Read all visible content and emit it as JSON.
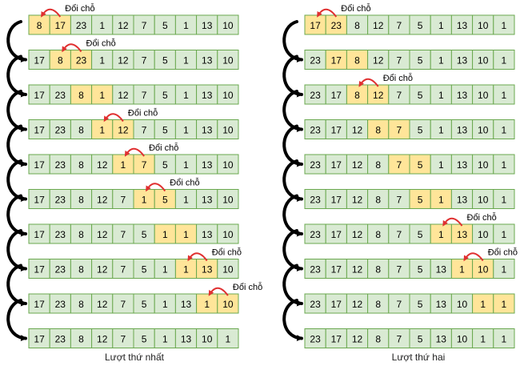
{
  "colors": {
    "cell_fill": "#d9ead3",
    "cell_highlight": "#ffe599",
    "cell_border": "#6aa84f",
    "swap_arrow": "#e03030",
    "flow_arrow": "#000000"
  },
  "swap_label": "Đổi chỗ",
  "passes": [
    {
      "caption": "Lượt thứ nhất",
      "rows": [
        {
          "values": [
            "8",
            "17",
            "23",
            "1",
            "12",
            "7",
            "5",
            "1",
            "13",
            "10"
          ],
          "highlight": [
            0,
            1
          ],
          "swap": true
        },
        {
          "values": [
            "17",
            "8",
            "23",
            "1",
            "12",
            "7",
            "5",
            "1",
            "13",
            "10"
          ],
          "highlight": [
            1,
            2
          ],
          "swap": true
        },
        {
          "values": [
            "17",
            "23",
            "8",
            "1",
            "12",
            "7",
            "5",
            "1",
            "13",
            "10"
          ],
          "highlight": [
            2,
            3
          ],
          "swap": false
        },
        {
          "values": [
            "17",
            "23",
            "8",
            "1",
            "12",
            "7",
            "5",
            "1",
            "13",
            "10"
          ],
          "highlight": [
            3,
            4
          ],
          "swap": true
        },
        {
          "values": [
            "17",
            "23",
            "8",
            "12",
            "1",
            "7",
            "5",
            "1",
            "13",
            "10"
          ],
          "highlight": [
            4,
            5
          ],
          "swap": true
        },
        {
          "values": [
            "17",
            "23",
            "8",
            "12",
            "7",
            "1",
            "5",
            "1",
            "13",
            "10"
          ],
          "highlight": [
            5,
            6
          ],
          "swap": true
        },
        {
          "values": [
            "17",
            "23",
            "8",
            "12",
            "7",
            "5",
            "1",
            "1",
            "13",
            "10"
          ],
          "highlight": [
            6,
            7
          ],
          "swap": false
        },
        {
          "values": [
            "17",
            "23",
            "8",
            "12",
            "7",
            "5",
            "1",
            "1",
            "13",
            "10"
          ],
          "highlight": [
            7,
            8
          ],
          "swap": true
        },
        {
          "values": [
            "17",
            "23",
            "8",
            "12",
            "7",
            "5",
            "1",
            "13",
            "1",
            "10"
          ],
          "highlight": [
            8,
            9
          ],
          "swap": true
        },
        {
          "values": [
            "17",
            "23",
            "8",
            "12",
            "7",
            "5",
            "1",
            "13",
            "10",
            "1"
          ],
          "highlight": [],
          "swap": false
        }
      ]
    },
    {
      "caption": "Lượt thứ hai",
      "rows": [
        {
          "values": [
            "17",
            "23",
            "8",
            "12",
            "7",
            "5",
            "1",
            "13",
            "10",
            "1"
          ],
          "highlight": [
            0,
            1
          ],
          "swap": true
        },
        {
          "values": [
            "23",
            "17",
            "8",
            "12",
            "7",
            "5",
            "1",
            "13",
            "10",
            "1"
          ],
          "highlight": [
            1,
            2
          ],
          "swap": false
        },
        {
          "values": [
            "23",
            "17",
            "8",
            "12",
            "7",
            "5",
            "1",
            "13",
            "10",
            "1"
          ],
          "highlight": [
            2,
            3
          ],
          "swap": true
        },
        {
          "values": [
            "23",
            "17",
            "12",
            "8",
            "7",
            "5",
            "1",
            "13",
            "10",
            "1"
          ],
          "highlight": [
            3,
            4
          ],
          "swap": false
        },
        {
          "values": [
            "23",
            "17",
            "12",
            "8",
            "7",
            "5",
            "1",
            "13",
            "10",
            "1"
          ],
          "highlight": [
            4,
            5
          ],
          "swap": false
        },
        {
          "values": [
            "23",
            "17",
            "12",
            "8",
            "7",
            "5",
            "1",
            "13",
            "10",
            "1"
          ],
          "highlight": [
            5,
            6
          ],
          "swap": false
        },
        {
          "values": [
            "23",
            "17",
            "12",
            "8",
            "7",
            "5",
            "1",
            "13",
            "10",
            "1"
          ],
          "highlight": [
            6,
            7
          ],
          "swap": true
        },
        {
          "values": [
            "23",
            "17",
            "12",
            "8",
            "7",
            "5",
            "13",
            "1",
            "10",
            "1"
          ],
          "highlight": [
            7,
            8
          ],
          "swap": true
        },
        {
          "values": [
            "23",
            "17",
            "12",
            "8",
            "7",
            "5",
            "13",
            "10",
            "1",
            "1"
          ],
          "highlight": [
            8,
            9
          ],
          "swap": false
        },
        {
          "values": [
            "23",
            "17",
            "12",
            "8",
            "7",
            "5",
            "13",
            "10",
            "1",
            "1"
          ],
          "highlight": [],
          "swap": false
        }
      ]
    }
  ]
}
